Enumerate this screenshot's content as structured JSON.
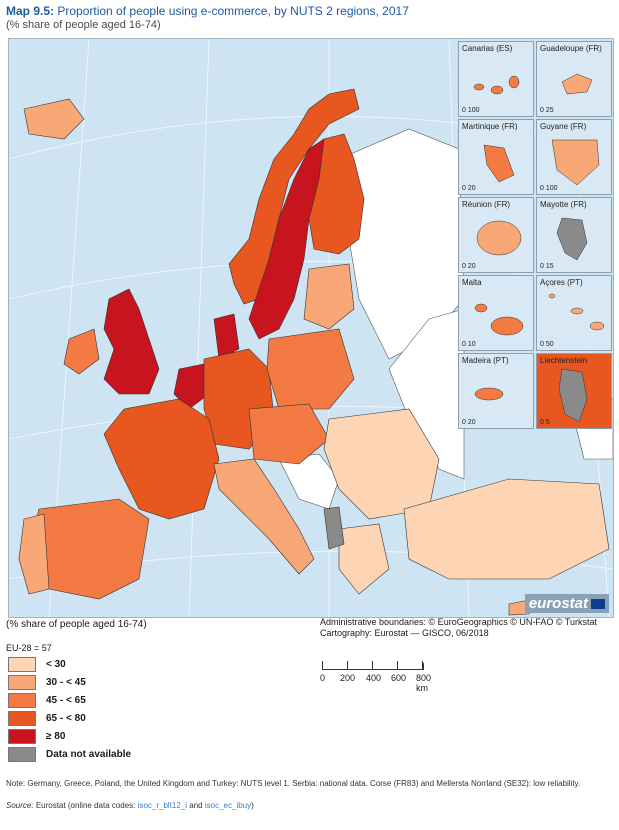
{
  "title": {
    "prefix": "Map 9.5:",
    "main": "Proportion of people using e-commerce, by NUTS 2 regions, 2017",
    "subtitle": "(% share of people aged 16-74)"
  },
  "legend_title": "(% share of people aged 16-74)",
  "eu_value": "EU-28 = 57",
  "legend": [
    {
      "label": "< 30",
      "color": "#fdd5b5"
    },
    {
      "label": "30 - < 45",
      "color": "#f8a877"
    },
    {
      "label": "45 - < 65",
      "color": "#f47a44"
    },
    {
      "label": "65 - < 80",
      "color": "#e8571f"
    },
    {
      "label": "≥ 80",
      "color": "#c8141e"
    },
    {
      "label": "Data not available",
      "color": "#8a8a8a"
    }
  ],
  "credits": {
    "line1": "Administrative boundaries: © EuroGeographics © UN-FAO © Turkstat",
    "line2": "Cartography: Eurostat — GISCO, 06/2018"
  },
  "scale": {
    "labels": [
      "0",
      "200",
      "400",
      "600",
      "800 km"
    ]
  },
  "insets": [
    {
      "name": "Canarias (ES)",
      "scale": "0  100",
      "color": "#f47a44"
    },
    {
      "name": "Guadeloupe (FR)",
      "scale": "0  25",
      "color": "#f8a877"
    },
    {
      "name": "Martinique (FR)",
      "scale": "0  20",
      "color": "#f47a44"
    },
    {
      "name": "Guyane (FR)",
      "scale": "0  100",
      "color": "#f8a877"
    },
    {
      "name": "Réunion (FR)",
      "scale": "0  20",
      "color": "#f8a877"
    },
    {
      "name": "Mayotte (FR)",
      "scale": "0  15",
      "color": "#8a8a8a"
    },
    {
      "name": "Malta",
      "scale": "0  10",
      "color": "#f47a44"
    },
    {
      "name": "Açores (PT)",
      "scale": "0  50",
      "color": "#f8a877"
    },
    {
      "name": "Madeira (PT)",
      "scale": "0  20",
      "color": "#f47a44"
    },
    {
      "name": "Liechtenstein",
      "scale": "0  5",
      "color": "#8a8a8a"
    }
  ],
  "logo": "eurostat",
  "note": "Note: Germany, Greece, Poland, the United Kingdom and Turkey: NUTS level 1. Serbia: national data. Corse (FR83) and Mellersta Norrland (SE32): low reliability.",
  "source": {
    "label": "Source:",
    "text": "Eurostat (online data codes:",
    "code1": "isoc_r_blt12_i",
    "and": "and",
    "code2": "isoc_ec_ibuy",
    "end": ")"
  }
}
